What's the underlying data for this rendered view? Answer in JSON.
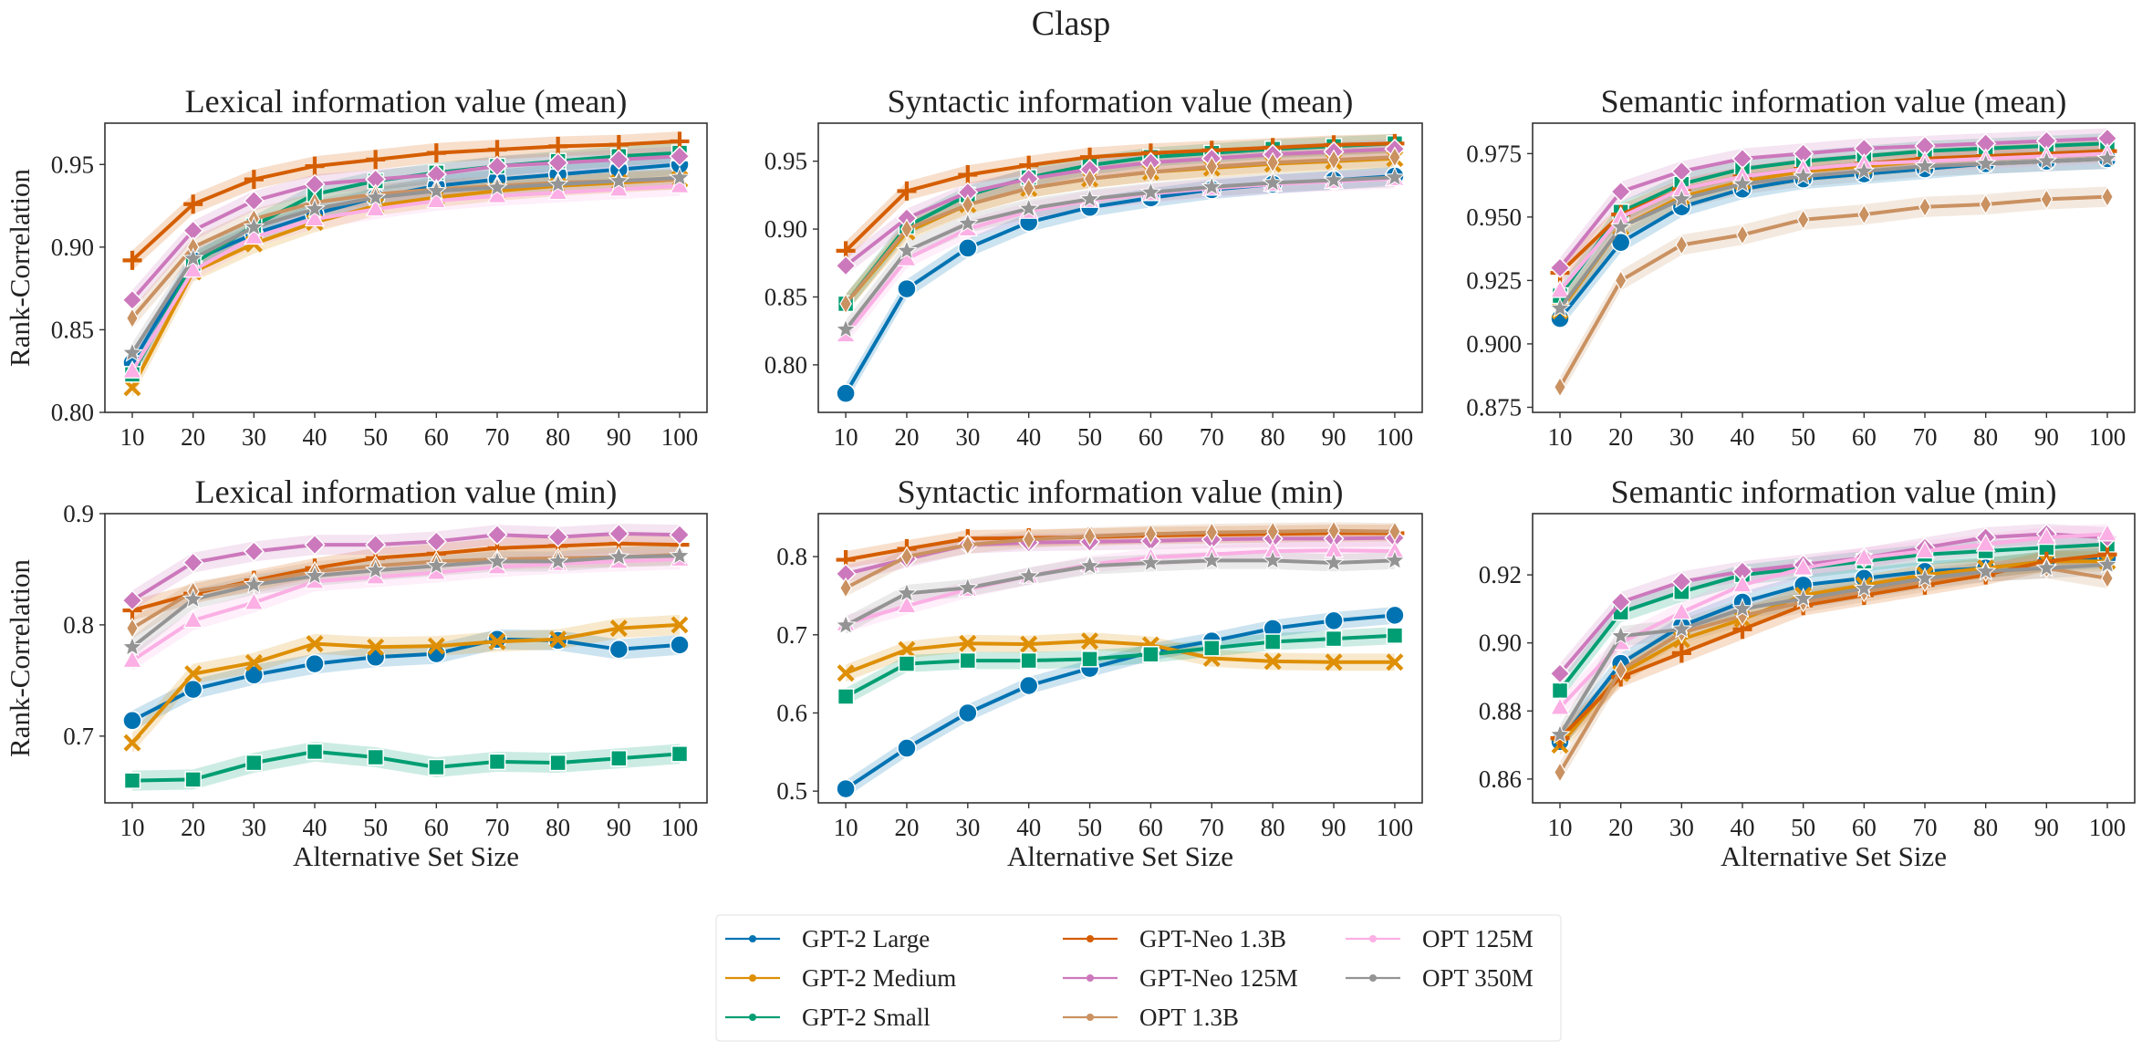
{
  "figure": {
    "title": "Clasp",
    "colors": {
      "GPT-2 Large": "#0173b2",
      "GPT-2 Medium": "#de8f05",
      "GPT-2 Small": "#029e73",
      "GPT-Neo 1.3B": "#d55e00",
      "GPT-Neo 125M": "#cc78bc",
      "OPT 1.3B": "#ca9161",
      "OPT 125M": "#fbafe4",
      "OPT 350M": "#949494"
    },
    "markers": {
      "GPT-2 Large": "circle",
      "GPT-2 Medium": "x",
      "GPT-2 Small": "square",
      "GPT-Neo 1.3B": "plus",
      "GPT-Neo 125M": "diamond",
      "OPT 1.3B": "thin-diamond",
      "OPT 125M": "triangle",
      "OPT 350M": "star"
    },
    "legend": {
      "placement": "bottom-center",
      "entries": [
        "GPT-2 Large",
        "GPT-2 Medium",
        "GPT-2 Small",
        "GPT-Neo 1.3B",
        "GPT-Neo 125M",
        "OPT 1.3B",
        "OPT 125M",
        "OPT 350M"
      ]
    }
  },
  "chart_data": [
    {
      "type": "line",
      "title": "Lexical information value (mean)",
      "xlabel": "",
      "ylabel": "Rank-Correlation",
      "x": [
        10,
        20,
        30,
        40,
        50,
        60,
        70,
        80,
        90,
        100
      ],
      "xticks": [
        "10",
        "20",
        "30",
        "40",
        "50",
        "60",
        "70",
        "80",
        "90",
        "100"
      ],
      "ylim": [
        0.8,
        0.975
      ],
      "yticks": [
        "0.80",
        "0.85",
        "0.90",
        "0.95"
      ],
      "band": 0.006,
      "series": [
        {
          "name": "GPT-2 Large",
          "values": [
            0.83,
            0.892,
            0.908,
            0.92,
            0.93,
            0.937,
            0.941,
            0.944,
            0.947,
            0.95
          ]
        },
        {
          "name": "GPT-2 Medium",
          "values": [
            0.815,
            0.885,
            0.902,
            0.915,
            0.925,
            0.93,
            0.934,
            0.937,
            0.939,
            0.941
          ]
        },
        {
          "name": "GPT-2 Small",
          "values": [
            0.823,
            0.89,
            0.913,
            0.932,
            0.94,
            0.945,
            0.949,
            0.952,
            0.955,
            0.957
          ]
        },
        {
          "name": "GPT-Neo 1.3B",
          "values": [
            0.892,
            0.926,
            0.941,
            0.949,
            0.953,
            0.957,
            0.959,
            0.961,
            0.962,
            0.964
          ]
        },
        {
          "name": "GPT-Neo 125M",
          "values": [
            0.868,
            0.91,
            0.928,
            0.938,
            0.941,
            0.944,
            0.949,
            0.951,
            0.953,
            0.955
          ]
        },
        {
          "name": "OPT 1.3B",
          "values": [
            0.857,
            0.9,
            0.917,
            0.927,
            0.932,
            0.935,
            0.937,
            0.939,
            0.94,
            0.941
          ]
        },
        {
          "name": "OPT 125M",
          "values": [
            0.825,
            0.886,
            0.906,
            0.917,
            0.923,
            0.928,
            0.931,
            0.933,
            0.935,
            0.937
          ]
        },
        {
          "name": "OPT 350M",
          "values": [
            0.836,
            0.893,
            0.912,
            0.923,
            0.93,
            0.934,
            0.936,
            0.938,
            0.94,
            0.942
          ]
        }
      ]
    },
    {
      "type": "line",
      "title": "Syntactic information value (mean)",
      "xlabel": "",
      "ylabel": "",
      "x": [
        10,
        20,
        30,
        40,
        50,
        60,
        70,
        80,
        90,
        100
      ],
      "xticks": [
        "10",
        "20",
        "30",
        "40",
        "50",
        "60",
        "70",
        "80",
        "90",
        "100"
      ],
      "ylim": [
        0.765,
        0.978
      ],
      "yticks": [
        "0.80",
        "0.85",
        "0.90",
        "0.95"
      ],
      "band": 0.007,
      "series": [
        {
          "name": "GPT-2 Large",
          "values": [
            0.779,
            0.856,
            0.886,
            0.905,
            0.916,
            0.923,
            0.929,
            0.933,
            0.936,
            0.939
          ]
        },
        {
          "name": "GPT-2 Medium",
          "values": [
            0.845,
            0.898,
            0.918,
            0.93,
            0.937,
            0.942,
            0.945,
            0.948,
            0.95,
            0.952
          ]
        },
        {
          "name": "GPT-2 Small",
          "values": [
            0.845,
            0.902,
            0.925,
            0.938,
            0.947,
            0.953,
            0.956,
            0.959,
            0.961,
            0.963
          ]
        },
        {
          "name": "GPT-Neo 1.3B",
          "values": [
            0.884,
            0.928,
            0.94,
            0.947,
            0.953,
            0.956,
            0.958,
            0.96,
            0.962,
            0.963
          ]
        },
        {
          "name": "GPT-Neo 125M",
          "values": [
            0.873,
            0.908,
            0.927,
            0.937,
            0.944,
            0.949,
            0.952,
            0.955,
            0.957,
            0.959
          ]
        },
        {
          "name": "OPT 1.3B",
          "values": [
            0.845,
            0.9,
            0.918,
            0.93,
            0.937,
            0.942,
            0.946,
            0.949,
            0.951,
            0.953
          ]
        },
        {
          "name": "OPT 125M",
          "values": [
            0.822,
            0.878,
            0.9,
            0.913,
            0.921,
            0.926,
            0.93,
            0.933,
            0.935,
            0.937
          ]
        },
        {
          "name": "OPT 350M",
          "values": [
            0.826,
            0.884,
            0.904,
            0.915,
            0.922,
            0.927,
            0.931,
            0.934,
            0.936,
            0.938
          ]
        }
      ]
    },
    {
      "type": "line",
      "title": "Semantic information value (mean)",
      "xlabel": "",
      "ylabel": "",
      "x": [
        10,
        20,
        30,
        40,
        50,
        60,
        70,
        80,
        90,
        100
      ],
      "xticks": [
        "10",
        "20",
        "30",
        "40",
        "50",
        "60",
        "70",
        "80",
        "90",
        "100"
      ],
      "ylim": [
        0.873,
        0.987
      ],
      "yticks": [
        "0.875",
        "0.900",
        "0.925",
        "0.950",
        "0.975"
      ],
      "band": 0.004,
      "series": [
        {
          "name": "GPT-2 Large",
          "values": [
            0.91,
            0.94,
            0.954,
            0.961,
            0.965,
            0.967,
            0.969,
            0.971,
            0.972,
            0.973
          ]
        },
        {
          "name": "GPT-2 Medium",
          "values": [
            0.913,
            0.946,
            0.958,
            0.964,
            0.968,
            0.97,
            0.972,
            0.974,
            0.975,
            0.976
          ]
        },
        {
          "name": "GPT-2 Small",
          "values": [
            0.919,
            0.952,
            0.963,
            0.969,
            0.972,
            0.974,
            0.976,
            0.977,
            0.978,
            0.979
          ]
        },
        {
          "name": "GPT-Neo 1.3B",
          "values": [
            0.928,
            0.951,
            0.961,
            0.966,
            0.969,
            0.971,
            0.973,
            0.974,
            0.975,
            0.976
          ]
        },
        {
          "name": "GPT-Neo 125M",
          "values": [
            0.93,
            0.96,
            0.968,
            0.973,
            0.975,
            0.977,
            0.978,
            0.979,
            0.98,
            0.981
          ]
        },
        {
          "name": "OPT 1.3B",
          "values": [
            0.883,
            0.925,
            0.939,
            0.943,
            0.949,
            0.951,
            0.954,
            0.955,
            0.957,
            0.958
          ]
        },
        {
          "name": "OPT 125M",
          "values": [
            0.921,
            0.95,
            0.961,
            0.966,
            0.969,
            0.971,
            0.972,
            0.973,
            0.974,
            0.975
          ]
        },
        {
          "name": "OPT 350M",
          "values": [
            0.914,
            0.946,
            0.957,
            0.963,
            0.966,
            0.968,
            0.97,
            0.971,
            0.972,
            0.973
          ]
        }
      ]
    },
    {
      "type": "line",
      "title": "Lexical information value (min)",
      "xlabel": "Alternative Set Size",
      "ylabel": "Rank-Correlation",
      "x": [
        10,
        20,
        30,
        40,
        50,
        60,
        70,
        80,
        90,
        100
      ],
      "xticks": [
        "10",
        "20",
        "30",
        "40",
        "50",
        "60",
        "70",
        "80",
        "90",
        "100"
      ],
      "ylim": [
        0.64,
        0.9
      ],
      "yticks": [
        "0.7",
        "0.8",
        "0.9"
      ],
      "band": 0.009,
      "series": [
        {
          "name": "GPT-2 Large",
          "values": [
            0.714,
            0.742,
            0.755,
            0.765,
            0.771,
            0.774,
            0.787,
            0.786,
            0.778,
            0.782
          ]
        },
        {
          "name": "GPT-2 Medium",
          "values": [
            0.694,
            0.756,
            0.766,
            0.783,
            0.78,
            0.781,
            0.785,
            0.787,
            0.797,
            0.8
          ]
        },
        {
          "name": "GPT-2 Small",
          "values": [
            0.66,
            0.661,
            0.676,
            0.686,
            0.681,
            0.672,
            0.677,
            0.676,
            0.68,
            0.684
          ]
        },
        {
          "name": "GPT-Neo 1.3B",
          "values": [
            0.813,
            0.828,
            0.84,
            0.851,
            0.86,
            0.864,
            0.869,
            0.871,
            0.873,
            0.872
          ]
        },
        {
          "name": "GPT-Neo 125M",
          "values": [
            0.822,
            0.856,
            0.866,
            0.872,
            0.872,
            0.875,
            0.881,
            0.879,
            0.882,
            0.881
          ]
        },
        {
          "name": "OPT 1.3B",
          "values": [
            0.797,
            0.83,
            0.838,
            0.848,
            0.853,
            0.857,
            0.859,
            0.86,
            0.861,
            0.863
          ]
        },
        {
          "name": "OPT 125M",
          "values": [
            0.768,
            0.804,
            0.82,
            0.839,
            0.843,
            0.847,
            0.852,
            0.855,
            0.857,
            0.859
          ]
        },
        {
          "name": "OPT 350M",
          "values": [
            0.78,
            0.823,
            0.836,
            0.844,
            0.849,
            0.853,
            0.857,
            0.857,
            0.861,
            0.862
          ]
        }
      ]
    },
    {
      "type": "line",
      "title": "Syntactic information value (min)",
      "xlabel": "Alternative Set Size",
      "ylabel": "",
      "x": [
        10,
        20,
        30,
        40,
        50,
        60,
        70,
        80,
        90,
        100
      ],
      "xticks": [
        "10",
        "20",
        "30",
        "40",
        "50",
        "60",
        "70",
        "80",
        "90",
        "100"
      ],
      "ylim": [
        0.485,
        0.855
      ],
      "yticks": [
        "0.5",
        "0.6",
        "0.7",
        "0.8"
      ],
      "band": 0.011,
      "series": [
        {
          "name": "GPT-2 Large",
          "values": [
            0.503,
            0.555,
            0.6,
            0.635,
            0.657,
            0.678,
            0.692,
            0.708,
            0.718,
            0.725
          ]
        },
        {
          "name": "GPT-2 Medium",
          "values": [
            0.651,
            0.681,
            0.689,
            0.688,
            0.692,
            0.687,
            0.67,
            0.666,
            0.665,
            0.665
          ]
        },
        {
          "name": "GPT-2 Small",
          "values": [
            0.621,
            0.663,
            0.667,
            0.667,
            0.669,
            0.675,
            0.683,
            0.691,
            0.695,
            0.699
          ]
        },
        {
          "name": "GPT-Neo 1.3B",
          "values": [
            0.796,
            0.81,
            0.823,
            0.824,
            0.825,
            0.827,
            0.828,
            0.829,
            0.83,
            0.83
          ]
        },
        {
          "name": "GPT-Neo 125M",
          "values": [
            0.778,
            0.797,
            0.815,
            0.818,
            0.819,
            0.82,
            0.822,
            0.823,
            0.823,
            0.824
          ]
        },
        {
          "name": "OPT 1.3B",
          "values": [
            0.76,
            0.8,
            0.815,
            0.822,
            0.826,
            0.829,
            0.831,
            0.832,
            0.833,
            0.832
          ]
        },
        {
          "name": "OPT 125M",
          "values": [
            0.714,
            0.737,
            0.758,
            0.775,
            0.79,
            0.799,
            0.803,
            0.807,
            0.808,
            0.807
          ]
        },
        {
          "name": "OPT 350M",
          "values": [
            0.712,
            0.753,
            0.76,
            0.775,
            0.788,
            0.792,
            0.795,
            0.795,
            0.792,
            0.795
          ]
        }
      ]
    },
    {
      "type": "line",
      "title": "Semantic information value (min)",
      "xlabel": "Alternative Set Size",
      "ylabel": "",
      "x": [
        10,
        20,
        30,
        40,
        50,
        60,
        70,
        80,
        90,
        100
      ],
      "xticks": [
        "10",
        "20",
        "30",
        "40",
        "50",
        "60",
        "70",
        "80",
        "90",
        "100"
      ],
      "ylim": [
        0.853,
        0.938
      ],
      "yticks": [
        "0.86",
        "0.88",
        "0.90",
        "0.92"
      ],
      "band": 0.003,
      "series": [
        {
          "name": "GPT-2 Large",
          "values": [
            0.871,
            0.894,
            0.905,
            0.912,
            0.917,
            0.919,
            0.921,
            0.922,
            0.924,
            0.925
          ]
        },
        {
          "name": "GPT-2 Medium",
          "values": [
            0.87,
            0.891,
            0.901,
            0.907,
            0.914,
            0.917,
            0.92,
            0.922,
            0.924,
            0.924
          ]
        },
        {
          "name": "GPT-2 Small",
          "values": [
            0.886,
            0.909,
            0.915,
            0.92,
            0.922,
            0.924,
            0.926,
            0.927,
            0.928,
            0.929
          ]
        },
        {
          "name": "GPT-Neo 1.3B",
          "values": [
            0.872,
            0.89,
            0.897,
            0.904,
            0.911,
            0.914,
            0.917,
            0.92,
            0.924,
            0.926
          ]
        },
        {
          "name": "GPT-Neo 125M",
          "values": [
            0.891,
            0.912,
            0.918,
            0.921,
            0.923,
            0.925,
            0.928,
            0.931,
            0.932,
            0.931
          ]
        },
        {
          "name": "OPT 1.3B",
          "values": [
            0.862,
            0.892,
            0.903,
            0.908,
            0.912,
            0.915,
            0.918,
            0.921,
            0.922,
            0.919
          ]
        },
        {
          "name": "OPT 125M",
          "values": [
            0.881,
            0.9,
            0.909,
            0.917,
            0.922,
            0.925,
            0.927,
            0.929,
            0.931,
            0.932
          ]
        },
        {
          "name": "OPT 350M",
          "values": [
            0.873,
            0.902,
            0.904,
            0.91,
            0.913,
            0.916,
            0.919,
            0.921,
            0.922,
            0.923
          ]
        }
      ]
    }
  ]
}
